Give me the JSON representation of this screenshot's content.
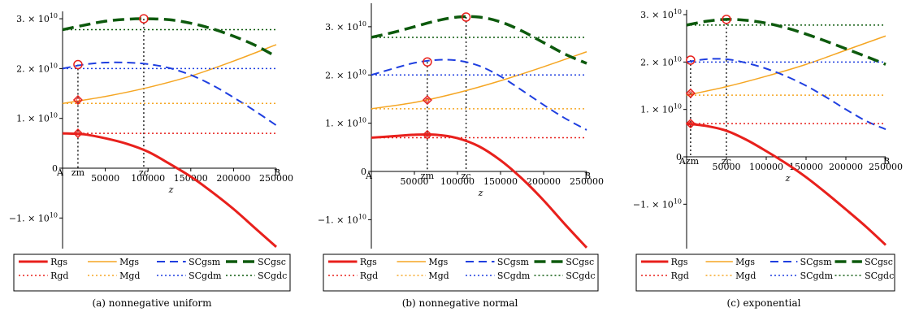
{
  "figure": {
    "colors": {
      "Rgs": "#e8201c",
      "Mgs": "#f5a623",
      "SCgsm": "#1f3fe0",
      "SCgsc": "#0d5a0d",
      "Rgd": "#e8201c",
      "Mgd": "#f5a623",
      "SCgdm": "#1f3fe0",
      "SCgdc": "#0d5a0d",
      "marker": "#e8201c"
    }
  },
  "chart_data": [
    {
      "type": "line",
      "caption": "(a) nonnegative uniform",
      "xlabel": "z",
      "xlim": [
        0,
        250000
      ],
      "ylim": [
        -16000000000.0,
        30500000000.0
      ],
      "x_ticks": [
        "50000",
        "100000",
        "150000",
        "200000",
        "250000"
      ],
      "y_ticks": [
        {
          "base": "3. × 10",
          "exp": "10",
          "value": 30000000000.0
        },
        {
          "base": "2. × 10",
          "exp": "10",
          "value": 20000000000.0
        },
        {
          "base": "1. × 10",
          "exp": "10",
          "value": 10000000000.0
        },
        {
          "base": "0",
          "exp": "",
          "value": 0
        },
        {
          "base": "−1. × 10",
          "exp": "10",
          "value": -10000000000.0
        }
      ],
      "axis_marks": [
        "A",
        "zm",
        "zc",
        "B"
      ],
      "x_marks": {
        "zm": 18000,
        "zc": 95000
      },
      "series": [
        {
          "name": "Rgs",
          "style": "solid-thick",
          "x": [
            0,
            25000,
            50000,
            75000,
            100000,
            125000,
            150000,
            175000,
            200000,
            225000,
            250000
          ],
          "values": [
            7000000000.0,
            6800000000.0,
            6000000000.0,
            4900000000.0,
            3300000000.0,
            900000000.0,
            -1700000000.0,
            -4800000000.0,
            -8200000000.0,
            -12000000000.0,
            -15800000000.0
          ]
        },
        {
          "name": "Mgs",
          "style": "solid",
          "x": [
            0,
            50000,
            100000,
            150000,
            200000,
            250000
          ],
          "values": [
            13000000000.0,
            14400000000.0,
            16200000000.0,
            18500000000.0,
            21500000000.0,
            24800000000.0
          ]
        },
        {
          "name": "SCgsm",
          "style": "dash",
          "x": [
            0,
            25000,
            50000,
            75000,
            100000,
            125000,
            150000,
            175000,
            200000,
            225000,
            250000
          ],
          "values": [
            20000000000.0,
            20800000000.0,
            21200000000.0,
            21200000000.0,
            20900000000.0,
            20100000000.0,
            18700000000.0,
            16700000000.0,
            14200000000.0,
            11500000000.0,
            8600000000.0
          ]
        },
        {
          "name": "SCgsc",
          "style": "dash-thick",
          "x": [
            0,
            25000,
            50000,
            75000,
            100000,
            125000,
            150000,
            175000,
            200000,
            225000,
            250000
          ],
          "values": [
            27800000000.0,
            28700000000.0,
            29500000000.0,
            29900000000.0,
            30000000000.0,
            29800000000.0,
            29100000000.0,
            28000000000.0,
            26500000000.0,
            24700000000.0,
            22400000000.0
          ]
        },
        {
          "name": "Rgd",
          "style": "dot",
          "x": [
            0,
            250000
          ],
          "values": [
            7000000000.0,
            7000000000.0
          ]
        },
        {
          "name": "Mgd",
          "style": "dot",
          "x": [
            0,
            250000
          ],
          "values": [
            13000000000.0,
            13000000000.0
          ]
        },
        {
          "name": "SCgdm",
          "style": "dot",
          "x": [
            0,
            250000
          ],
          "values": [
            20000000000.0,
            20000000000.0
          ]
        },
        {
          "name": "SCgdc",
          "style": "dot",
          "x": [
            0,
            250000
          ],
          "values": [
            27800000000.0,
            27800000000.0
          ]
        }
      ],
      "markers": [
        {
          "x": 18000,
          "y": 7000000000.0,
          "shape": "diamond"
        },
        {
          "x": 18000,
          "y": 13700000000.0,
          "shape": "diamond"
        },
        {
          "x": 18000,
          "y": 20800000000.0,
          "shape": "circle"
        },
        {
          "x": 95000,
          "y": 30000000000.0,
          "shape": "circle"
        }
      ]
    },
    {
      "type": "line",
      "caption": "(b) nonnegative normal",
      "xlabel": "z",
      "xlim": [
        0,
        250000
      ],
      "ylim": [
        -16000000000.0,
        32500000000.0
      ],
      "x_ticks": [
        "50000",
        "100000",
        "150000",
        "200000",
        "250000"
      ],
      "y_ticks": [
        {
          "base": "3. × 10",
          "exp": "10",
          "value": 30000000000.0
        },
        {
          "base": "2. × 10",
          "exp": "10",
          "value": 20000000000.0
        },
        {
          "base": "1. × 10",
          "exp": "10",
          "value": 10000000000.0
        },
        {
          "base": "0",
          "exp": "",
          "value": 0
        },
        {
          "base": "−1. × 10",
          "exp": "10",
          "value": -10000000000.0
        }
      ],
      "axis_marks": [
        "A",
        "zm",
        "zc",
        "B"
      ],
      "x_marks": {
        "zm": 65000,
        "zc": 110000
      },
      "series": [
        {
          "name": "Rgs",
          "style": "solid-thick",
          "x": [
            0,
            25000,
            50000,
            75000,
            100000,
            125000,
            150000,
            175000,
            200000,
            225000,
            250000
          ],
          "values": [
            7000000000.0,
            7300000000.0,
            7600000000.0,
            7600000000.0,
            6900000000.0,
            5200000000.0,
            2300000000.0,
            -1500000000.0,
            -6000000000.0,
            -11000000000.0,
            -15800000000.0
          ]
        },
        {
          "name": "Mgs",
          "style": "solid",
          "x": [
            0,
            50000,
            100000,
            150000,
            200000,
            250000
          ],
          "values": [
            13000000000.0,
            14300000000.0,
            16300000000.0,
            18800000000.0,
            21700000000.0,
            24800000000.0
          ]
        },
        {
          "name": "SCgsm",
          "style": "dash",
          "x": [
            0,
            25000,
            50000,
            75000,
            100000,
            125000,
            150000,
            175000,
            200000,
            225000,
            250000
          ],
          "values": [
            20000000000.0,
            21300000000.0,
            22500000000.0,
            23100000000.0,
            23000000000.0,
            21900000000.0,
            19700000000.0,
            16800000000.0,
            13800000000.0,
            11000000000.0,
            8600000000.0
          ]
        },
        {
          "name": "SCgsc",
          "style": "dash-thick",
          "x": [
            0,
            25000,
            50000,
            75000,
            100000,
            125000,
            150000,
            175000,
            200000,
            225000,
            250000
          ],
          "values": [
            27800000000.0,
            28800000000.0,
            30000000000.0,
            31200000000.0,
            32000000000.0,
            32000000000.0,
            31000000000.0,
            29100000000.0,
            26700000000.0,
            24300000000.0,
            22400000000.0
          ]
        },
        {
          "name": "Rgd",
          "style": "dot",
          "x": [
            0,
            250000
          ],
          "values": [
            7000000000.0,
            7000000000.0
          ]
        },
        {
          "name": "Mgd",
          "style": "dot",
          "x": [
            0,
            250000
          ],
          "values": [
            13000000000.0,
            13000000000.0
          ]
        },
        {
          "name": "SCgdm",
          "style": "dot",
          "x": [
            0,
            250000
          ],
          "values": [
            20000000000.0,
            20000000000.0
          ]
        },
        {
          "name": "SCgdc",
          "style": "dot",
          "x": [
            0,
            250000
          ],
          "values": [
            27800000000.0,
            27800000000.0
          ]
        }
      ],
      "markers": [
        {
          "x": 65000,
          "y": 7600000000.0,
          "shape": "diamond"
        },
        {
          "x": 65000,
          "y": 14800000000.0,
          "shape": "diamond"
        },
        {
          "x": 65000,
          "y": 22700000000.0,
          "shape": "circle"
        },
        {
          "x": 110000,
          "y": 32000000000.0,
          "shape": "circle"
        }
      ]
    },
    {
      "type": "line",
      "caption": "(c) exponential",
      "xlabel": "z",
      "xlim": [
        0,
        250000
      ],
      "ylim": [
        -19000000000.0,
        30000000000.0
      ],
      "x_ticks": [
        "50000",
        "100000",
        "150000",
        "200000",
        "250000"
      ],
      "y_ticks": [
        {
          "base": "3. × 10",
          "exp": "10",
          "value": 30000000000.0
        },
        {
          "base": "2. × 10",
          "exp": "10",
          "value": 20000000000.0
        },
        {
          "base": "1. × 10",
          "exp": "10",
          "value": 10000000000.0
        },
        {
          "base": "0",
          "exp": "",
          "value": 0
        },
        {
          "base": "−1. × 10",
          "exp": "10",
          "value": -10000000000.0
        }
      ],
      "axis_marks": [
        "Azm",
        "zc",
        "B"
      ],
      "x_marks": {
        "zm": 5000,
        "zc": 50000
      },
      "series": [
        {
          "name": "Rgs",
          "style": "solid-thick",
          "x": [
            0,
            25000,
            50000,
            75000,
            100000,
            125000,
            150000,
            175000,
            200000,
            225000,
            250000
          ],
          "values": [
            7000000000.0,
            6500000000.0,
            5500000000.0,
            3600000000.0,
            1200000000.0,
            -1400000000.0,
            -4300000000.0,
            -7600000000.0,
            -11100000000.0,
            -14700000000.0,
            -18600000000.0
          ]
        },
        {
          "name": "Mgs",
          "style": "solid",
          "x": [
            0,
            50000,
            100000,
            150000,
            200000,
            250000
          ],
          "values": [
            13000000000.0,
            14800000000.0,
            17000000000.0,
            19500000000.0,
            22500000000.0,
            25500000000.0
          ]
        },
        {
          "name": "SCgsm",
          "style": "dash",
          "x": [
            0,
            25000,
            50000,
            75000,
            100000,
            125000,
            150000,
            175000,
            200000,
            225000,
            250000
          ],
          "values": [
            20000000000.0,
            20600000000.0,
            20600000000.0,
            19800000000.0,
            18600000000.0,
            17000000000.0,
            15000000000.0,
            12600000000.0,
            10000000000.0,
            7600000000.0,
            5800000000.0
          ]
        },
        {
          "name": "SCgsc",
          "style": "dash-thick",
          "x": [
            0,
            25000,
            50000,
            75000,
            100000,
            125000,
            150000,
            175000,
            200000,
            225000,
            250000
          ],
          "values": [
            27800000000.0,
            28600000000.0,
            29000000000.0,
            28800000000.0,
            28200000000.0,
            27200000000.0,
            25900000000.0,
            24400000000.0,
            22800000000.0,
            21200000000.0,
            19500000000.0
          ]
        },
        {
          "name": "Rgd",
          "style": "dot",
          "x": [
            0,
            250000
          ],
          "values": [
            7000000000.0,
            7000000000.0
          ]
        },
        {
          "name": "Mgd",
          "style": "dot",
          "x": [
            0,
            250000
          ],
          "values": [
            13000000000.0,
            13000000000.0
          ]
        },
        {
          "name": "SCgdm",
          "style": "dot",
          "x": [
            0,
            250000
          ],
          "values": [
            20000000000.0,
            20000000000.0
          ]
        },
        {
          "name": "SCgdc",
          "style": "dot",
          "x": [
            0,
            250000
          ],
          "values": [
            27800000000.0,
            27800000000.0
          ]
        }
      ],
      "markers": [
        {
          "x": 5000,
          "y": 7000000000.0,
          "shape": "diamond"
        },
        {
          "x": 5000,
          "y": 13400000000.0,
          "shape": "diamond"
        },
        {
          "x": 5000,
          "y": 20400000000.0,
          "shape": "circle"
        },
        {
          "x": 50000,
          "y": 29000000000.0,
          "shape": "circle"
        }
      ]
    }
  ],
  "legend": {
    "row1": [
      "Rgs",
      "Mgs",
      "SCgsm",
      "SCgsc"
    ],
    "row2": [
      "Rgd",
      "Mgd",
      "SCgdm",
      "SCgdc"
    ]
  }
}
